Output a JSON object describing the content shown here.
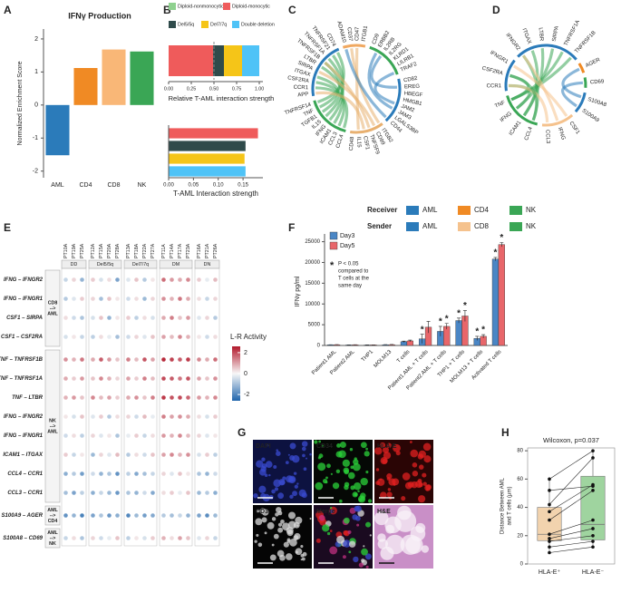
{
  "panel_letters": [
    "A",
    "B",
    "C",
    "D",
    "E",
    "F",
    "G",
    "H"
  ],
  "chord_legend": {
    "receiver_title": "Receiver",
    "receiver": [
      {
        "name": "AML",
        "color": "#2b7bba"
      },
      {
        "name": "CD4",
        "color": "#f08a24"
      },
      {
        "name": "NK",
        "color": "#3aa655"
      }
    ],
    "sender_title": "Sender",
    "sender": [
      {
        "name": "AML",
        "color": "#2b7bba"
      },
      {
        "name": "CD8",
        "color": "#f5c28d"
      },
      {
        "name": "NK",
        "color": "#3aa655"
      }
    ]
  },
  "images": [
    {
      "label": "DAPI",
      "label_color": "#5b7bff"
    },
    {
      "label": "CD34",
      "label_color": "#3ee04a"
    },
    {
      "label": "HLA-E",
      "label_color": "#ff4040"
    },
    {
      "label": "CD3",
      "label_color": "#ffffff"
    },
    {
      "label": "Merge",
      "label_color": "#ffffff"
    },
    {
      "label": "H&E",
      "label_color": "#111111"
    }
  ],
  "chart_data": [
    {
      "type": "bar",
      "title": "IFNγ Production",
      "ylabel": "Normalized Enrichment Score",
      "categories": [
        "AML",
        "CD4",
        "CD8",
        "NK"
      ],
      "values": [
        -1.52,
        1.12,
        1.68,
        1.62
      ],
      "colors": [
        "#2b7bba",
        "#f08a24",
        "#f9b777",
        "#3aa655"
      ],
      "ylim": [
        -2.2,
        2.3
      ],
      "yticks": [
        -2,
        -1,
        0,
        1,
        2
      ]
    },
    {
      "type": "stacked_bar",
      "series": [
        {
          "name": "Diploid-nonmonocytic",
          "color": "#8fd18f",
          "values": [
            0
          ]
        },
        {
          "name": "Diploid-monocytic",
          "color": "#ef5b5b",
          "values": [
            0.49
          ]
        },
        {
          "name": "Del5/5q",
          "color": "#2f4b4b",
          "values": [
            0.12
          ]
        },
        {
          "name": "Del7/7q",
          "color": "#f5c518",
          "values": [
            0.2
          ]
        },
        {
          "name": "Double deletion",
          "color": "#4fc3f7",
          "values": [
            0.19
          ]
        }
      ],
      "xlabel": "Relative T-AML interaction strength",
      "xlim": [
        0,
        1.04
      ],
      "xticks": [
        {
          "value": 0,
          "label": "0.00"
        },
        {
          "value": 0.25,
          "label": "0.25"
        },
        {
          "value": 0.5,
          "label": "0.50"
        },
        {
          "value": 0.75,
          "label": "0.75"
        },
        {
          "value": 1,
          "label": "1.00"
        }
      ],
      "reference_line": 0.5
    },
    {
      "type": "hbar",
      "categories": [
        null,
        null,
        null,
        null
      ],
      "values": [
        0.18,
        0.155,
        0.153,
        0.155
      ],
      "colors": [
        "#ef5b5b",
        "#2f4b4b",
        "#f5c518",
        "#4fc3f7"
      ],
      "xlabel": "T-AML Interaction strength",
      "xlim": [
        0,
        0.19
      ],
      "xticks": [
        {
          "value": 0,
          "label": "0.00"
        },
        {
          "value": 0.05,
          "label": "0.05"
        },
        {
          "value": 0.1,
          "label": "0.10"
        },
        {
          "value": 0.15,
          "label": "0.15"
        }
      ]
    },
    {
      "type": "chord",
      "segments": [
        {
          "color": "#2b7bba",
          "labels": [
            "APP",
            "CCR1",
            "CSF2RA",
            "ITGAX",
            "SIRPA",
            "LTBR",
            "TNFRSF1B",
            "TNFRSF1A",
            "TNFRSF21",
            "CD74"
          ]
        },
        {
          "color": "#f0a860",
          "labels": [
            "ADAM10",
            "CD37",
            "CD47",
            "ITGB1"
          ]
        },
        {
          "color": "#3aa655",
          "labels": [
            "CD9",
            "ERBB2",
            "IL2RB",
            "IL2RG",
            "KLRD1",
            "LILRB1",
            "TRAF2"
          ]
        },
        {
          "color": "#2b7bba",
          "labels": [
            "CD82",
            "EREG",
            "HBEGF",
            "HMGB1",
            "JAM2",
            "JAM3",
            "LGALS3BP",
            "CD44"
          ]
        },
        {
          "color": "#e8b070",
          "labels": [
            "ITGB2",
            "CD99",
            "TNFSF9",
            "CSF1",
            "IL15",
            "CD48"
          ]
        },
        {
          "color": "#3aa655",
          "labels": [
            "CCL4",
            "CCL3",
            "ICAM1",
            "IFNG",
            "IL15",
            "TGFB1",
            "TNF",
            "TNFRSF14"
          ]
        }
      ]
    },
    {
      "type": "chord",
      "segments": [
        {
          "color": "#2b7bba",
          "labels": [
            "IFNGR2",
            "ITGAX",
            "LTBR",
            "SIRPA",
            "TNFRSF1A",
            "TNFRSF1B"
          ]
        },
        {
          "color": "#f08a24",
          "labels": [
            "AGER"
          ]
        },
        {
          "color": "#3aa655",
          "labels": [
            "CD69"
          ]
        },
        {
          "color": "#2b7bba",
          "labels": [
            "S100A8",
            "S100A9"
          ]
        },
        {
          "color": "#f5c28d",
          "labels": [
            "CSF1",
            "IFNG",
            "CCL3"
          ]
        },
        {
          "color": "#3aa655",
          "labels": [
            "CCL4",
            "ICAM1",
            "IFNG",
            "TNF"
          ]
        },
        {
          "color": "#2b7bba",
          "labels": [
            "CCR1",
            "CSF2RA",
            "IFNGR1"
          ]
        }
      ]
    },
    {
      "type": "dot_matrix",
      "col_groups": [
        {
          "name": "DD",
          "columns": [
            "PT10A",
            "PT19A",
            "PT25A"
          ]
        },
        {
          "name": "Del5/5q",
          "columns": [
            "PT12A",
            "PT15A",
            "PT20A",
            "PT28A"
          ]
        },
        {
          "name": "Del7/7q",
          "columns": [
            "PT13A",
            "PT18A",
            "PT22A",
            "PT27A"
          ]
        },
        {
          "name": "DM",
          "columns": [
            "PT11A",
            "PT14A",
            "PT17A",
            "PT23A"
          ]
        },
        {
          "name": "DN",
          "columns": [
            "PT16A",
            "PT21A",
            "PT26A"
          ]
        }
      ],
      "row_groups": [
        {
          "label_lines": [
            "CD8",
            "-->",
            "AML"
          ],
          "rows": [
            {
              "label": "IFNG – IFNGR2",
              "values": [
                -0.6,
                0.4,
                -1.2,
                0.5,
                -0.4,
                0.3,
                -1.5,
                -0.3,
                0.6,
                -0.8,
                0.2,
                1.6,
                1.1,
                0.9,
                1.3,
                0.5,
                -0.2,
                0.7
              ]
            },
            {
              "label": "IFNG – IFNGR1",
              "values": [
                -0.8,
                -0.3,
                0.5,
                0.4,
                -1.0,
                0.6,
                0.2,
                -0.5,
                0.3,
                -1.1,
                0.4,
                1.2,
                0.8,
                1.5,
                0.9,
                0.3,
                -0.6,
                0.4
              ]
            },
            {
              "label": "CSF1 – SIRPA",
              "values": [
                0.3,
                -0.5,
                -0.9,
                -0.4,
                0.6,
                -1.2,
                0.2,
                0.5,
                -0.7,
                0.3,
                -0.4,
                0.9,
                1.4,
                0.6,
                1.1,
                -0.3,
                0.4,
                -0.8
              ]
            },
            {
              "label": "CSF1 – CSF2RA",
              "values": [
                -0.4,
                0.2,
                -0.6,
                -0.7,
                0.3,
                -0.2,
                -1.0,
                -0.5,
                0.4,
                -0.3,
                0.6,
                1.0,
                0.7,
                1.3,
                0.8,
                0.2,
                -0.5,
                0.3
              ]
            }
          ]
        },
        {
          "label_lines": [
            "NK",
            "-->",
            "AML"
          ],
          "rows": [
            {
              "label": "TNF – TNFRSF1B",
              "values": [
                1.2,
                0.8,
                1.5,
                0.9,
                1.8,
                1.1,
                0.6,
                1.4,
                0.7,
                1.9,
                1.0,
                2.4,
                2.1,
                1.8,
                2.2,
                1.3,
                0.9,
                1.6
              ]
            },
            {
              "label": "TNF – TNFRSF1A",
              "values": [
                0.9,
                0.5,
                1.1,
                0.6,
                1.3,
                0.8,
                0.4,
                1.0,
                0.5,
                1.4,
                0.7,
                2.0,
                1.8,
                1.5,
                1.9,
                1.0,
                0.6,
                1.2
              ]
            },
            {
              "label": "TNF – LTBR",
              "values": [
                0.8,
                1.1,
                0.6,
                1.3,
                0.7,
                1.0,
                0.5,
                0.9,
                1.2,
                0.6,
                1.4,
                2.2,
                1.9,
                2.0,
                1.7,
                1.1,
                0.8,
                1.3
              ]
            },
            {
              "label": "IFNG – IFNGR2",
              "values": [
                0.2,
                -0.4,
                0.6,
                -0.3,
                0.5,
                -0.8,
                0.3,
                0.4,
                -0.5,
                0.7,
                -0.2,
                1.4,
                1.0,
                1.2,
                0.9,
                0.3,
                -0.4,
                0.5
              ]
            },
            {
              "label": "IFNG – IFNGR1",
              "values": [
                -0.5,
                0.3,
                -0.7,
                0.4,
                -0.3,
                0.2,
                -0.9,
                -0.2,
                0.5,
                -0.6,
                0.3,
                1.1,
                0.8,
                1.3,
                0.7,
                0.4,
                -0.3,
                0.2
              ]
            },
            {
              "label": "ICAM1 – ITGAX",
              "values": [
                0.5,
                -0.6,
                0.2,
                -1.1,
                0.4,
                -0.3,
                0.7,
                -0.8,
                0.3,
                -0.5,
                0.6,
                1.0,
                1.3,
                0.8,
                1.2,
                -0.4,
                0.5,
                -0.7
              ]
            },
            {
              "label": "CCL4 – CCR1",
              "values": [
                -1.3,
                -0.8,
                -1.6,
                -0.5,
                -1.2,
                -0.9,
                -1.8,
                -0.7,
                -1.4,
                -1.0,
                -0.6,
                0.4,
                -0.3,
                0.6,
                0.2,
                -0.9,
                -1.2,
                -0.5
              ]
            },
            {
              "label": "CCL3 – CCR1",
              "values": [
                -1.0,
                -1.5,
                -0.7,
                -1.3,
                -0.6,
                -1.1,
                -1.7,
                -0.9,
                -1.2,
                -0.5,
                -1.4,
                0.3,
                0.5,
                -0.2,
                0.6,
                -1.1,
                -0.8,
                -1.3
              ]
            }
          ]
        },
        {
          "label_lines": [
            "AML",
            "-->",
            "CD4"
          ],
          "rows": [
            {
              "label": "S100A9 – AGER",
              "values": [
                -1.8,
                -1.2,
                -2.1,
                -1.5,
                -0.9,
                -1.7,
                -1.3,
                -2.0,
                -1.1,
                -1.6,
                -1.4,
                -0.8,
                -1.0,
                -0.6,
                -1.2,
                -1.5,
                -1.9,
                -1.1
              ]
            }
          ]
        },
        {
          "label_lines": [
            "AML",
            "-->",
            "NK"
          ],
          "rows": [
            {
              "label": "S100A8 – CD69",
              "values": [
                -0.6,
                0.3,
                -0.9,
                0.4,
                -0.5,
                -0.2,
                0.6,
                -0.7,
                0.2,
                -0.4,
                0.5,
                0.8,
                0.3,
                1.0,
                0.6,
                -0.3,
                0.4,
                -0.6
              ]
            }
          ]
        }
      ],
      "colorbar_title": "L-R Activity",
      "colorlim": [
        -2.6,
        2.6
      ],
      "colorbar_ticks": [
        2,
        0,
        -2
      ],
      "colors": [
        "#2166ac",
        "#f7f7f7",
        "#b2182b"
      ]
    },
    {
      "type": "grouped_bar",
      "ylabel": "IFNγ pg/ml",
      "categories": [
        "Patient1 AML",
        "Patient2 AML",
        "THP1",
        "MOLM13",
        "T cells",
        "Patient1 AML + T cells",
        "Patient2 AML + T cells",
        "THP1 + T cells",
        "MOLM13 + T cells",
        "Activated T cells"
      ],
      "series": [
        {
          "name": "Day3",
          "color": "#4a86c5",
          "values": [
            150,
            120,
            110,
            160,
            900,
            1600,
            3400,
            6000,
            1700,
            20800
          ],
          "errors": [
            40,
            30,
            30,
            40,
            150,
            1100,
            1200,
            600,
            500,
            400
          ],
          "stars": [
            null,
            null,
            null,
            null,
            null,
            "*",
            "*",
            "*",
            "*",
            "*"
          ]
        },
        {
          "name": "Day5",
          "color": "#e8666a",
          "values": [
            180,
            140,
            130,
            190,
            1100,
            4400,
            4600,
            7100,
            2200,
            24300
          ],
          "errors": [
            40,
            40,
            30,
            40,
            200,
            1400,
            700,
            1300,
            400,
            500
          ],
          "stars": [
            null,
            null,
            null,
            null,
            null,
            null,
            "*",
            "*",
            "*",
            "*"
          ]
        }
      ],
      "annotation_symbol": "*",
      "annotation_lines": [
        "P < 0.05",
        "compared to",
        "T cells at the",
        "same day"
      ],
      "ylim": [
        0,
        26000
      ],
      "yticks": [
        0,
        5000,
        10000,
        15000,
        20000,
        25000
      ]
    },
    {
      "type": "box",
      "title": "Wilcoxon, p=0.037",
      "ylabel": [
        "Distance Between AML",
        "and T cells (μm)"
      ],
      "categories": [
        "HLA-E⁺",
        "HLA-E⁻"
      ],
      "colors": [
        "#f2d3ae",
        "#9fd49f"
      ],
      "boxes": [
        {
          "whisker_low": 8,
          "q1": 16.5,
          "median": 21,
          "q3": 40,
          "whisker_high": 60
        },
        {
          "whisker_low": 12,
          "q1": 17,
          "median": 28,
          "q3": 62,
          "whisker_high": 80
        }
      ],
      "points": [
        [
          60,
          52,
          42,
          37,
          31,
          21,
          18,
          16,
          12,
          8
        ],
        [
          80,
          55,
          75,
          56,
          52,
          31,
          25,
          20,
          16,
          12
        ]
      ],
      "ylim": [
        0,
        82
      ],
      "yticks": [
        0,
        20,
        40,
        60,
        80
      ]
    }
  ]
}
